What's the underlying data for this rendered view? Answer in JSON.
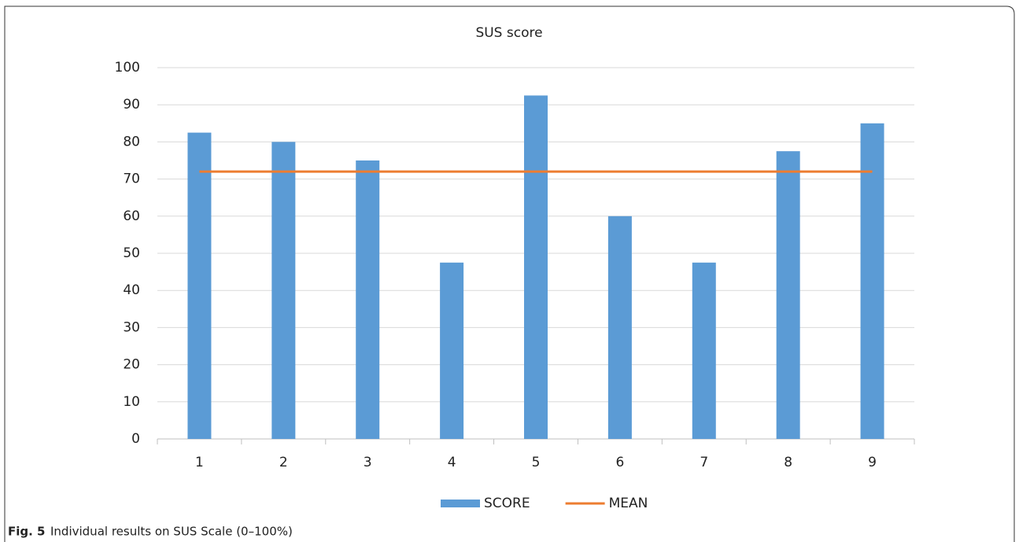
{
  "chart_data": {
    "type": "bar",
    "title": "SUS score",
    "categories": [
      "1",
      "2",
      "3",
      "4",
      "5",
      "6",
      "7",
      "8",
      "9"
    ],
    "series": [
      {
        "name": "SCORE",
        "type": "bar",
        "color": "#5b9bd5",
        "values": [
          82.5,
          80,
          75,
          47.5,
          92.5,
          60,
          47.5,
          77.5,
          85
        ]
      },
      {
        "name": "MEAN",
        "type": "line",
        "color": "#ed7d31",
        "values": [
          72,
          72,
          72,
          72,
          72,
          72,
          72,
          72,
          72
        ]
      }
    ],
    "ylim": [
      0,
      100
    ],
    "yticks": [
      0,
      10,
      20,
      30,
      40,
      50,
      60,
      70,
      80,
      90,
      100
    ],
    "grid": true,
    "legend": "bottom"
  },
  "caption": {
    "label": "Fig. 5",
    "text": "Individual results on SUS Scale (0–100%)"
  }
}
